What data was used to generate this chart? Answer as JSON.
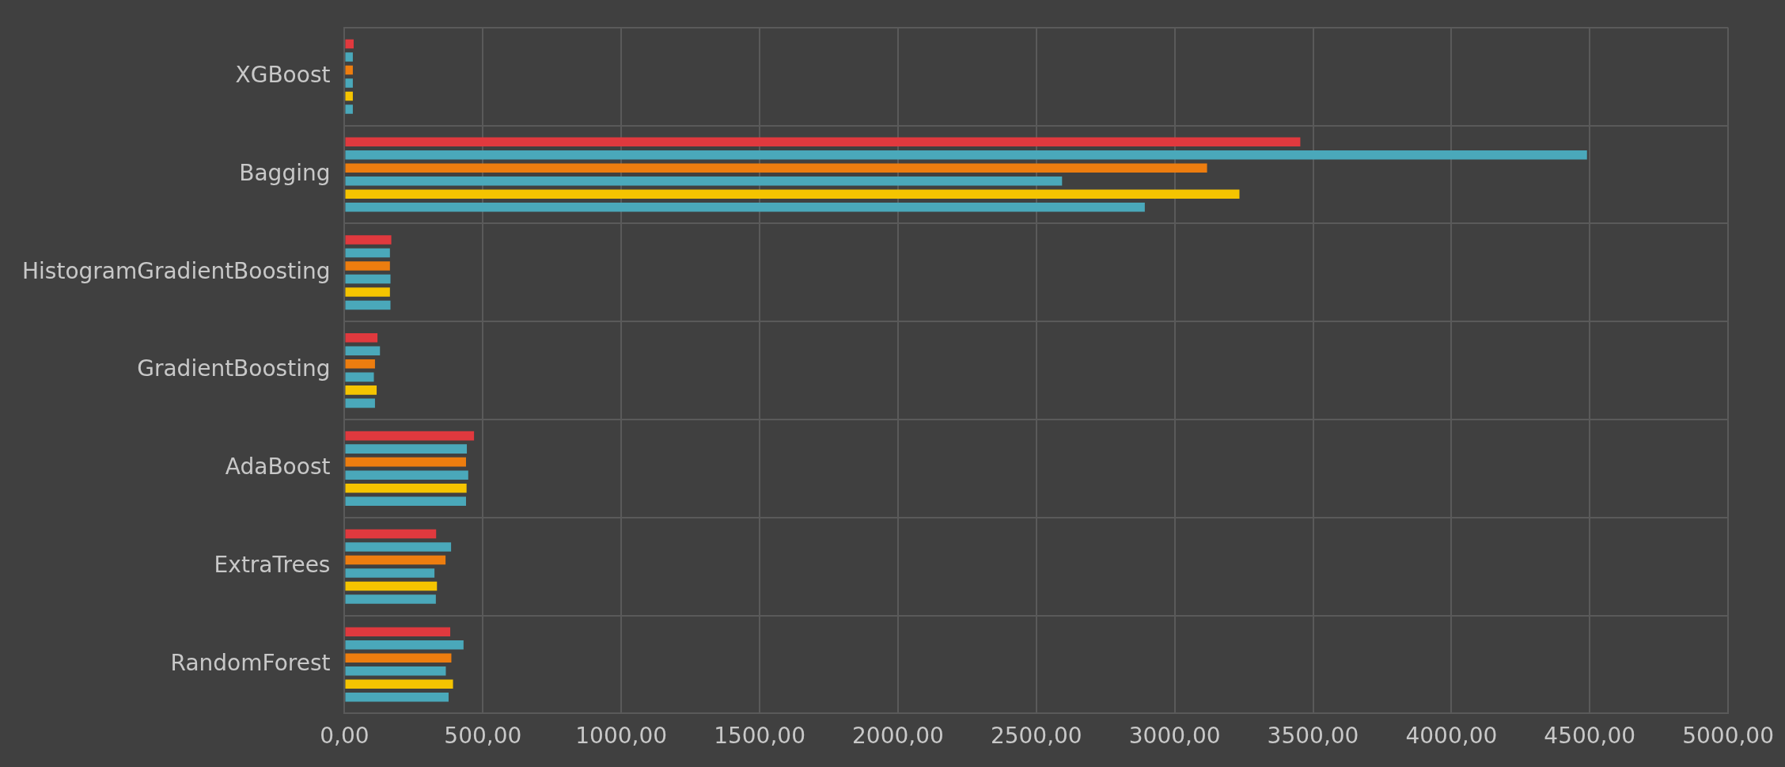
{
  "chart_data": {
    "type": "bar",
    "orientation": "horizontal",
    "categories": [
      "XGBoost",
      "Bagging",
      "HistogramGradientBoosting",
      "GradientBoosting",
      "AdaBoost",
      "ExtraTrees",
      "RandomForest"
    ],
    "series": [
      {
        "color": "#e0393e",
        "values": [
          33,
          3454,
          169,
          119,
          468,
          331,
          382
        ]
      },
      {
        "color": "#4aa8ba",
        "values": [
          30,
          4490,
          164,
          128,
          442,
          385,
          430
        ]
      },
      {
        "color": "#ed7d0f",
        "values": [
          30,
          3117,
          164,
          110,
          439,
          365,
          386
        ]
      },
      {
        "color": "#4aa8ba",
        "values": [
          30,
          2593,
          166,
          106,
          447,
          325,
          366
        ]
      },
      {
        "color": "#f5c400",
        "values": [
          30,
          3234,
          164,
          116,
          441,
          334,
          392
        ]
      },
      {
        "color": "#4aa8ba",
        "values": [
          30,
          2892,
          166,
          110,
          439,
          330,
          376
        ]
      }
    ],
    "xlim": [
      0,
      5000
    ],
    "xticks": [
      {
        "value": 0,
        "label": "0,00"
      },
      {
        "value": 500,
        "label": "500,00"
      },
      {
        "value": 1000,
        "label": "1000,00"
      },
      {
        "value": 1500,
        "label": "1500,00"
      },
      {
        "value": 2000,
        "label": "2000,00"
      },
      {
        "value": 2500,
        "label": "2500,00"
      },
      {
        "value": 3000,
        "label": "3000,00"
      },
      {
        "value": 3500,
        "label": "3500,00"
      },
      {
        "value": 4000,
        "label": "4000,00"
      },
      {
        "value": 4500,
        "label": "4500,00"
      },
      {
        "value": 5000,
        "label": "5000,00"
      }
    ],
    "grid": true,
    "legend": false
  }
}
